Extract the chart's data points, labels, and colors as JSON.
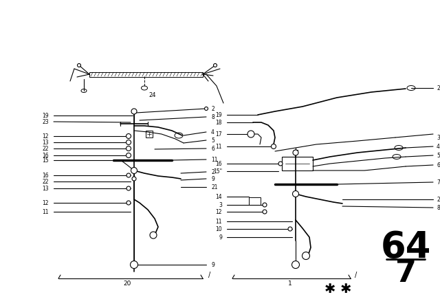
{
  "bg_color": "#ffffff",
  "fig_width": 6.4,
  "fig_height": 4.48,
  "dpi": 100,
  "num64": "64",
  "num7": "7",
  "stars": "✱ ✱",
  "label24": "24",
  "label20": "20",
  "label1": "1",
  "left_labels_l": [
    "19",
    "23",
    "12",
    "13",
    "22",
    "16",
    "15",
    "16",
    "22",
    "13",
    "12",
    "11"
  ],
  "left_labels_r": [
    "2",
    "8",
    "4",
    "5",
    "6",
    "11",
    "2",
    "9",
    "21"
  ],
  "right_labels_l": [
    "19",
    "18",
    "17",
    "11",
    "16",
    "15\"",
    "14",
    "3",
    "12",
    "11",
    "10",
    "9"
  ],
  "right_labels_r": [
    "2",
    "3",
    "4",
    "5",
    "6",
    "7",
    "2",
    "8"
  ]
}
